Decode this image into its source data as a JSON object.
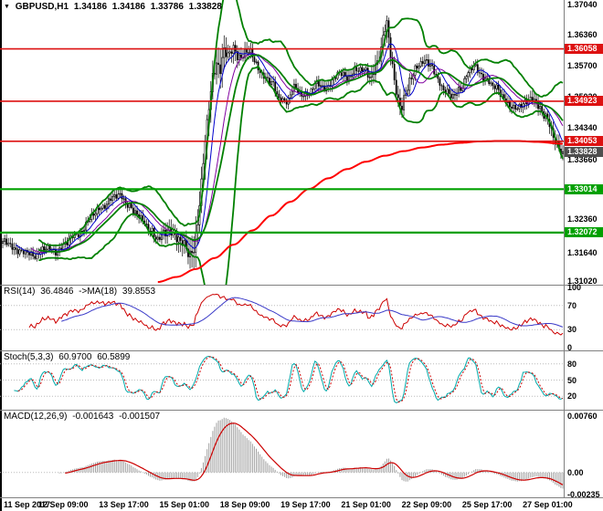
{
  "icons": {
    "chart_marker": "▼"
  },
  "chart_title": {
    "symbol": "GBPUSD,H1",
    "open": "1.34186",
    "high": "1.34186",
    "low": "1.33786",
    "close": "1.33828"
  },
  "panels": {
    "rsi": {
      "name": "RSI(14)",
      "value": "36.4846",
      "ma_name": "->MA(18)",
      "ma_value": "39.8553"
    },
    "stoch": {
      "name": "Stoch(5,3,3)",
      "value": "60.9700",
      "signal_value": "60.5899"
    },
    "macd": {
      "name": "MACD(12,26,9)",
      "value": "-0.001643",
      "signal_value": "-0.001507"
    }
  },
  "chart_data": {
    "type": "candlestick",
    "symbol": "GBPUSD",
    "timeframe": "H1",
    "title": "GBPUSD,H1",
    "ohlc_current": {
      "open": 1.34186,
      "high": 1.34186,
      "low": 1.33786,
      "close": 1.33828
    },
    "bars_total": 297,
    "y_range": [
      1.3102,
      1.3704
    ],
    "y_ticks": [
      {
        "v": 1.3704,
        "t": "1.37040"
      },
      {
        "v": 1.3636,
        "t": "1.36360"
      },
      {
        "v": 1.357,
        "t": "1.35700"
      },
      {
        "v": 1.3502,
        "t": "1.35020"
      },
      {
        "v": 1.3434,
        "t": "1.34340"
      },
      {
        "v": 1.3366,
        "t": "1.33660"
      },
      {
        "v": 1.3298,
        "t": "1.32980"
      },
      {
        "v": 1.3236,
        "t": "1.32360"
      },
      {
        "v": 1.3164,
        "t": "1.31640"
      },
      {
        "v": 1.3102,
        "t": "1.31020"
      }
    ],
    "x_labels": [
      {
        "bar": 0,
        "text": "11 Sep 2017"
      },
      {
        "bar": 32,
        "text": "12 Sep 09:00"
      },
      {
        "bar": 64,
        "text": "13 Sep 17:00"
      },
      {
        "bar": 96,
        "text": "15 Sep 01:00"
      },
      {
        "bar": 128,
        "text": "18 Sep 09:00"
      },
      {
        "bar": 160,
        "text": "19 Sep 17:00"
      },
      {
        "bar": 192,
        "text": "21 Sep 01:00"
      },
      {
        "bar": 224,
        "text": "22 Sep 09:00"
      },
      {
        "bar": 256,
        "text": "25 Sep 17:00"
      },
      {
        "bar": 288,
        "text": "27 Sep 01:00"
      }
    ],
    "levels": [
      {
        "price": 1.36058,
        "label": "1.36058",
        "kind": "resistance",
        "color": "#DD1111",
        "width": 1.6
      },
      {
        "price": 1.34923,
        "label": "1.34923",
        "kind": "resistance",
        "color": "#DD1111",
        "width": 1.6
      },
      {
        "price": 1.34053,
        "label": "1.34053",
        "kind": "resistance",
        "color": "#DD1111",
        "width": 1.6
      },
      {
        "price": 1.33014,
        "label": "1.33014",
        "kind": "support",
        "color": "#00A000",
        "width": 2.2
      },
      {
        "price": 1.32072,
        "label": "1.32072",
        "kind": "support",
        "color": "#00A000",
        "width": 2.2
      }
    ],
    "current_price": {
      "value": 1.33828,
      "label": "1.33828",
      "bg": "#4F4F4F"
    },
    "close_anchors": [
      [
        0,
        1.3188
      ],
      [
        5,
        1.3178
      ],
      [
        10,
        1.3164
      ],
      [
        16,
        1.3158
      ],
      [
        22,
        1.3172
      ],
      [
        28,
        1.3166
      ],
      [
        33,
        1.3184
      ],
      [
        40,
        1.3205
      ],
      [
        46,
        1.3236
      ],
      [
        52,
        1.3262
      ],
      [
        57,
        1.328
      ],
      [
        62,
        1.3287
      ],
      [
        66,
        1.3272
      ],
      [
        70,
        1.3248
      ],
      [
        74,
        1.3232
      ],
      [
        78,
        1.3216
      ],
      [
        82,
        1.319
      ],
      [
        85,
        1.3202
      ],
      [
        88,
        1.3218
      ],
      [
        91,
        1.3204
      ],
      [
        95,
        1.3178
      ],
      [
        99,
        1.3161
      ],
      [
        101,
        1.3175
      ],
      [
        103,
        1.3235
      ],
      [
        105,
        1.331
      ],
      [
        107,
        1.34
      ],
      [
        109,
        1.348
      ],
      [
        111,
        1.3545
      ],
      [
        113,
        1.3582
      ],
      [
        115,
        1.3565
      ],
      [
        117,
        1.3598
      ],
      [
        119,
        1.3588
      ],
      [
        122,
        1.3604
      ],
      [
        126,
        1.3592
      ],
      [
        130,
        1.36
      ],
      [
        134,
        1.3572
      ],
      [
        138,
        1.3548
      ],
      [
        142,
        1.353
      ],
      [
        146,
        1.35
      ],
      [
        150,
        1.3494
      ],
      [
        154,
        1.3519
      ],
      [
        158,
        1.3506
      ],
      [
        162,
        1.3513
      ],
      [
        166,
        1.3529
      ],
      [
        170,
        1.3519
      ],
      [
        174,
        1.3538
      ],
      [
        178,
        1.3551
      ],
      [
        182,
        1.3543
      ],
      [
        186,
        1.3561
      ],
      [
        190,
        1.3557
      ],
      [
        194,
        1.3549
      ],
      [
        198,
        1.3577
      ],
      [
        200,
        1.3605
      ],
      [
        202,
        1.3644
      ],
      [
        203,
        1.3654
      ],
      [
        205,
        1.3598
      ],
      [
        207,
        1.3541
      ],
      [
        209,
        1.3497
      ],
      [
        211,
        1.3481
      ],
      [
        213,
        1.3504
      ],
      [
        216,
        1.3544
      ],
      [
        219,
        1.3571
      ],
      [
        222,
        1.3581
      ],
      [
        226,
        1.3568
      ],
      [
        230,
        1.3541
      ],
      [
        234,
        1.3514
      ],
      [
        238,
        1.3499
      ],
      [
        242,
        1.3522
      ],
      [
        246,
        1.3556
      ],
      [
        249,
        1.3566
      ],
      [
        252,
        1.3552
      ],
      [
        256,
        1.3541
      ],
      [
        260,
        1.3521
      ],
      [
        264,
        1.3503
      ],
      [
        268,
        1.3486
      ],
      [
        272,
        1.3473
      ],
      [
        276,
        1.3489
      ],
      [
        280,
        1.3504
      ],
      [
        283,
        1.3479
      ],
      [
        286,
        1.3459
      ],
      [
        289,
        1.3446
      ],
      [
        291,
        1.3421
      ],
      [
        293,
        1.3397
      ],
      [
        295,
        1.3381
      ],
      [
        296,
        1.33828
      ]
    ],
    "red_ma_anchors": [
      [
        82,
        1.31
      ],
      [
        92,
        1.3111
      ],
      [
        102,
        1.3128
      ],
      [
        112,
        1.3152
      ],
      [
        122,
        1.3181
      ],
      [
        132,
        1.3212
      ],
      [
        142,
        1.3244
      ],
      [
        152,
        1.3274
      ],
      [
        162,
        1.3302
      ],
      [
        172,
        1.3325
      ],
      [
        182,
        1.3345
      ],
      [
        192,
        1.3361
      ],
      [
        202,
        1.3374
      ],
      [
        212,
        1.3384
      ],
      [
        222,
        1.3392
      ],
      [
        232,
        1.3398
      ],
      [
        242,
        1.3402
      ],
      [
        252,
        1.3405
      ],
      [
        262,
        1.3406
      ],
      [
        272,
        1.3406
      ],
      [
        282,
        1.3404
      ],
      [
        296,
        1.34
      ]
    ],
    "overlays": {
      "bollinger_period": 20,
      "bollinger_dev": 2,
      "ma_fast_period": 8,
      "ma_mid_period": 16
    },
    "indicators": {
      "rsi": {
        "label": "RSI(14)",
        "period": 14,
        "ma_period": 18,
        "value": 36.4846,
        "ma_value": 39.8553,
        "levels": [
          70,
          30
        ],
        "ticks": [
          {
            "v": 100,
            "t": "100"
          },
          {
            "v": 70,
            "t": "70"
          },
          {
            "v": 30,
            "t": "30"
          },
          {
            "v": 0,
            "t": "0"
          }
        ]
      },
      "stoch": {
        "label": "Stoch(5,3,3)",
        "k_period": 5,
        "d_period": 3,
        "slowing": 3,
        "value": 60.97,
        "signal": 60.5899,
        "levels": [
          80,
          50,
          20
        ],
        "ticks": [
          {
            "v": 80,
            "t": "80"
          },
          {
            "v": 50,
            "t": "50"
          },
          {
            "v": 20,
            "t": "20"
          }
        ]
      },
      "macd": {
        "label": "MACD(12,26,9)",
        "fast": 12,
        "slow": 26,
        "signal_period": 9,
        "value": -0.001643,
        "signal": -0.001507,
        "axis": {
          "top": "0.00760",
          "zero": "0.00",
          "bottom": "-0.00235"
        }
      }
    },
    "colors": {
      "background": "#FFFFFF",
      "candle": "#000000",
      "bollinger": "#008000",
      "ma_slow_red": "#FF0000",
      "ma_fast_blue": "#0000CC",
      "ma_mid_purple": "#8000A0",
      "rsi_line": "#CC0000",
      "rsi_ma": "#3A3AC8",
      "stoch_k": "#00AAAA",
      "stoch_d": "#CC0000",
      "macd_hist": "#A0A0A0",
      "macd_signal": "#CC0000",
      "grid_level": "#BBBBBB",
      "divider": "#808080",
      "text": "#000000"
    }
  }
}
